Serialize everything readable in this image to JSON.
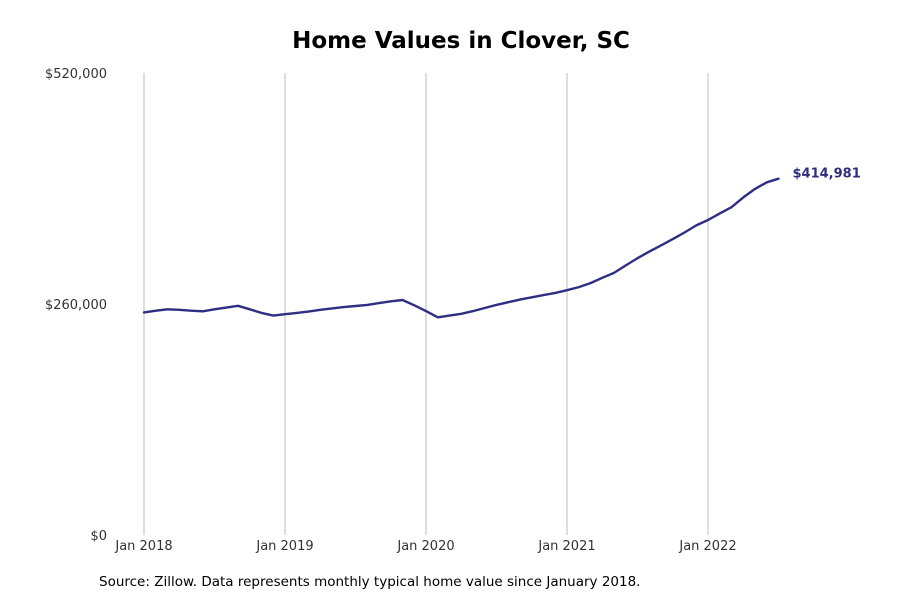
{
  "chart_data": {
    "type": "line",
    "title": "Home Values in Clover, SC",
    "xlabel": "",
    "ylabel": "",
    "ylim": [
      0,
      520000
    ],
    "yticks": [
      {
        "value": 0,
        "label": "$0"
      },
      {
        "value": 260000,
        "label": "$260,000"
      },
      {
        "value": 520000,
        "label": "$520,000"
      }
    ],
    "xticks": [
      {
        "value": "2018-01",
        "label": "Jan 2018"
      },
      {
        "value": "2019-01",
        "label": "Jan 2019"
      },
      {
        "value": "2020-01",
        "label": "Jan 2020"
      },
      {
        "value": "2021-01",
        "label": "Jan 2021"
      },
      {
        "value": "2022-01",
        "label": "Jan 2022"
      }
    ],
    "grid": {
      "vertical": true,
      "horizontal": false
    },
    "line_color": "#2e2f82",
    "series": [
      {
        "x": [
          "2018-01",
          "2018-02",
          "2018-03",
          "2018-04",
          "2018-05",
          "2018-06",
          "2018-07",
          "2018-08",
          "2018-09",
          "2018-10",
          "2018-11",
          "2018-12",
          "2019-01",
          "2019-02",
          "2019-03",
          "2019-04",
          "2019-05",
          "2019-06",
          "2019-07",
          "2019-08",
          "2019-09",
          "2019-10",
          "2019-11",
          "2019-12",
          "2020-01",
          "2020-02",
          "2020-03",
          "2020-04",
          "2020-05",
          "2020-06",
          "2020-07",
          "2020-08",
          "2020-09",
          "2020-10",
          "2020-11",
          "2020-12",
          "2021-01",
          "2021-02",
          "2021-03",
          "2021-04",
          "2021-05",
          "2021-06",
          "2021-07",
          "2021-08",
          "2021-09",
          "2021-10",
          "2021-11",
          "2021-12",
          "2022-01",
          "2022-02",
          "2022-03",
          "2022-04",
          "2022-05",
          "2022-06",
          "2022-07"
        ],
        "values": [
          250500,
          252500,
          254000,
          253500,
          252500,
          251800,
          254000,
          256000,
          258000,
          254000,
          250000,
          247000,
          248500,
          250000,
          251500,
          253500,
          255000,
          256500,
          257800,
          259000,
          261000,
          263000,
          264500,
          258500,
          252000,
          245000,
          247000,
          249000,
          252000,
          255500,
          259000,
          262000,
          265000,
          267500,
          270000,
          272500,
          275500,
          279000,
          283500,
          289500,
          295000,
          303500,
          311500,
          319000,
          326000,
          333000,
          340500,
          348500,
          354500,
          362000,
          369000,
          380000,
          389500,
          397000,
          401000
        ]
      }
    ],
    "end_label": "$414,981",
    "source": "Source: Zillow. Data represents monthly typical home value since January 2018."
  }
}
